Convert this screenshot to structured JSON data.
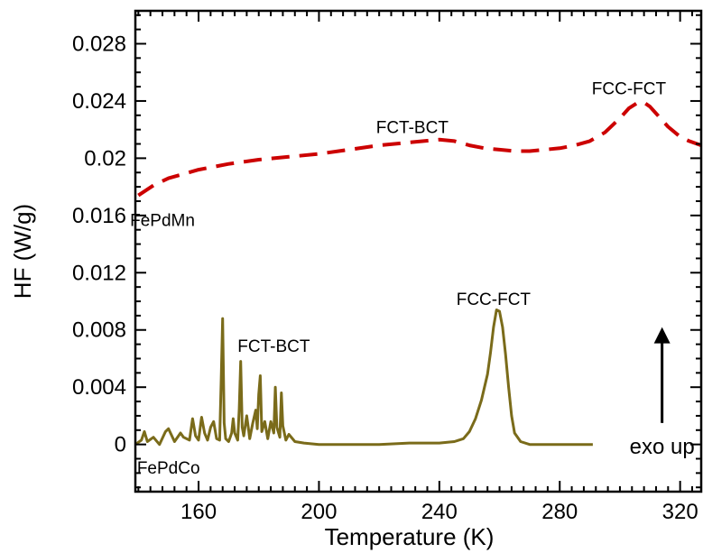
{
  "chart_data": {
    "type": "line",
    "title": "",
    "xlabel": "Temperature (K)",
    "ylabel": "HF (W/g)",
    "xlim": [
      139,
      327
    ],
    "ylim": [
      -0.0033,
      0.0303
    ],
    "x_ticks": [
      160,
      200,
      240,
      280,
      320
    ],
    "y_ticks": [
      0,
      0.004,
      0.008,
      0.012,
      0.016,
      0.02,
      0.024,
      0.028
    ],
    "x_tick_labels": [
      "160",
      "200",
      "240",
      "280",
      "320"
    ],
    "y_tick_labels": [
      "0",
      "0.004",
      "0.008",
      "0.012",
      "0.016",
      "0.02",
      "0.024",
      "0.028"
    ],
    "grid": false,
    "series": [
      {
        "name": "FePdMn",
        "color": "#cc0000",
        "style": "dashed",
        "x": [
          140,
          145,
          150,
          160,
          170,
          180,
          190,
          200,
          210,
          220,
          230,
          240,
          245,
          250,
          255,
          260,
          265,
          270,
          275,
          280,
          285,
          290,
          295,
          300,
          303,
          306,
          308,
          310,
          313,
          316,
          320,
          323,
          327
        ],
        "y": [
          0.0174,
          0.0181,
          0.0186,
          0.0192,
          0.0196,
          0.0199,
          0.0201,
          0.0203,
          0.0206,
          0.0209,
          0.0211,
          0.0213,
          0.0212,
          0.0209,
          0.0207,
          0.0206,
          0.0205,
          0.0205,
          0.0206,
          0.0207,
          0.0209,
          0.0212,
          0.0218,
          0.0228,
          0.0235,
          0.0239,
          0.0239,
          0.0236,
          0.0229,
          0.0222,
          0.0215,
          0.0212,
          0.0209
        ]
      },
      {
        "name": "FePdCo",
        "color": "#7a6b1a",
        "style": "solid",
        "x": [
          139,
          141,
          142,
          143,
          145,
          147,
          149,
          150,
          152,
          154,
          155,
          157,
          158,
          159,
          160,
          161,
          162,
          163,
          164,
          165,
          166,
          167,
          167.5,
          168,
          168.5,
          169,
          170,
          171,
          171.5,
          172,
          173,
          173.5,
          174,
          174.5,
          175,
          176,
          176.5,
          177,
          178,
          179,
          179.5,
          180,
          180.5,
          181,
          182,
          183,
          184,
          185,
          185.5,
          186,
          187,
          187.5,
          188,
          189,
          190,
          192,
          195,
          200,
          210,
          220,
          230,
          240,
          245,
          248,
          250,
          252,
          254,
          256,
          257,
          258,
          259,
          260,
          261,
          262,
          263,
          264,
          265,
          267,
          270,
          280,
          290,
          291
        ],
        "y": [
          0,
          0.0003,
          0.0009,
          0.0002,
          0.0005,
          0,
          0.0009,
          0.0011,
          0.0002,
          0.0008,
          0.0005,
          0.0003,
          0.0018,
          0.0006,
          0.0003,
          0.0019,
          0.0008,
          0.0003,
          0.0012,
          0.0016,
          0.0004,
          0.0003,
          0.0045,
          0.0088,
          0.0015,
          0.0004,
          0.0002,
          0.0008,
          0.0018,
          0.0008,
          0.0003,
          0.0025,
          0.0058,
          0.0012,
          0.0006,
          0.002,
          0.0012,
          0.0004,
          0.0015,
          0.0024,
          0.0011,
          0.0035,
          0.0048,
          0.0009,
          0.0016,
          0.0004,
          0.0016,
          0.0008,
          0.004,
          0.0012,
          0.0005,
          0.0036,
          0.0013,
          0.0003,
          0.0007,
          0.0002,
          0.0001,
          0,
          0,
          0,
          0.0001,
          0.0001,
          0.0002,
          0.0004,
          0.0009,
          0.0018,
          0.0031,
          0.0049,
          0.0064,
          0.0082,
          0.0094,
          0.0093,
          0.0082,
          0.0063,
          0.004,
          0.002,
          0.0008,
          0.0002,
          0,
          0,
          0,
          0
        ]
      }
    ],
    "annotations": [
      {
        "text": "FePdMn",
        "x": 148,
        "y": 0.0157
      },
      {
        "text": "FCT-BCT",
        "x": 231,
        "y": 0.0222
      },
      {
        "text": "FCC-FCT",
        "x": 303,
        "y": 0.0249
      },
      {
        "text": "FCC-FCT",
        "x": 258,
        "y": 0.0102
      },
      {
        "text": "FCT-BCT",
        "x": 185,
        "y": 0.0069
      },
      {
        "text": "FePdCo",
        "x": 150,
        "y": -0.0016
      },
      {
        "text": "exo up",
        "x": 314,
        "y": -0.0002
      }
    ],
    "arrow": {
      "x": 314,
      "y_from": 0.0015,
      "y_to": 0.0082
    }
  }
}
